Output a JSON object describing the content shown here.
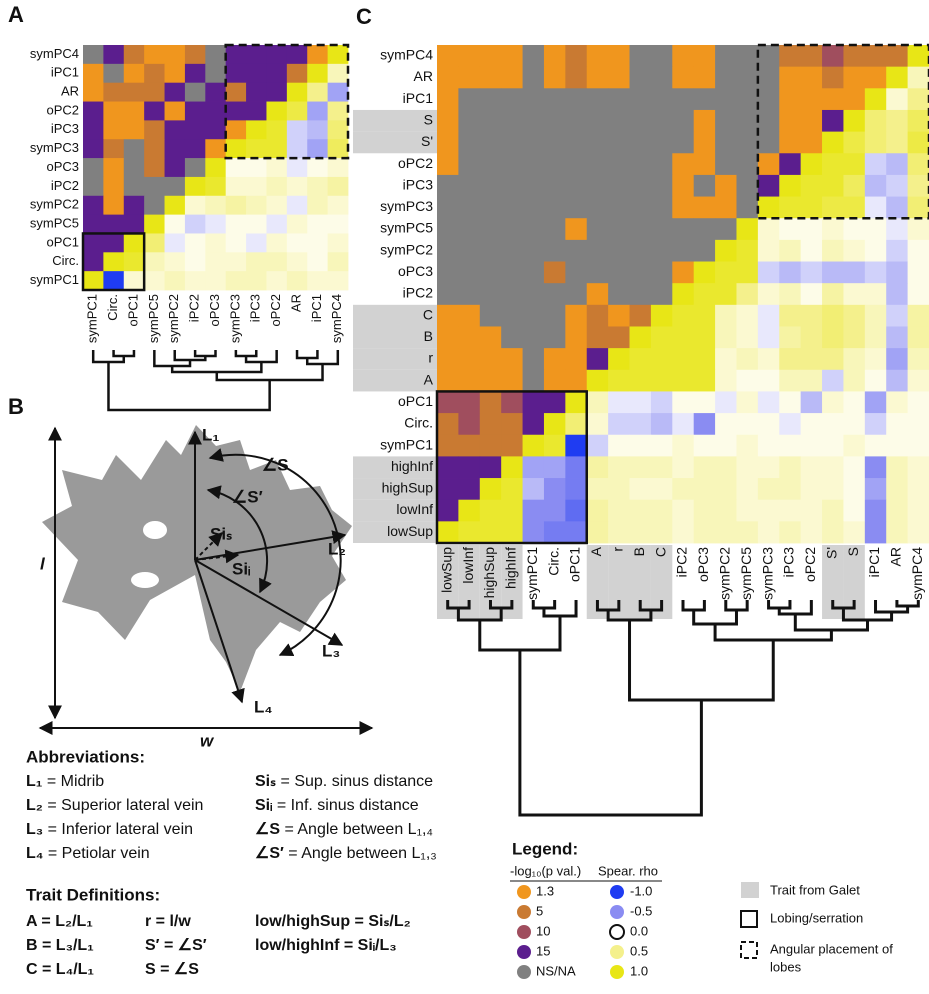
{
  "chart_data": [
    {
      "type": "heatmap",
      "panel": "A",
      "rows": [
        "symPC4",
        "iPC1",
        "AR",
        "oPC2",
        "iPC3",
        "symPC3",
        "oPC3",
        "iPC2",
        "symPC2",
        "symPC5",
        "oPC1",
        "Circ.",
        "symPC1"
      ],
      "columns": [
        "symPC1",
        "Circ.",
        "oPC1",
        "symPC5",
        "symPC2",
        "iPC2",
        "oPC3",
        "symPC3",
        "iPC3",
        "oPC2",
        "AR",
        "iPC1",
        "symPC4"
      ],
      "values": [
        [
          null,
          15,
          5,
          1.3,
          1.3,
          5,
          null,
          15,
          15,
          15,
          15,
          1.3,
          1
        ],
        [
          1.3,
          null,
          1.3,
          5,
          1.3,
          15,
          null,
          15,
          15,
          15,
          5,
          1,
          0.3
        ],
        [
          1.3,
          5,
          5,
          5,
          15,
          null,
          15,
          5,
          15,
          15,
          1,
          0.5,
          -0.4
        ],
        [
          15,
          1.3,
          1.3,
          15,
          1.3,
          15,
          15,
          15,
          15,
          1,
          0.8,
          -0.4,
          0.5
        ],
        [
          15,
          1.3,
          1.3,
          5,
          15,
          15,
          15,
          1.3,
          1,
          0.9,
          -0.2,
          -0.3,
          0.6
        ],
        [
          15,
          5,
          null,
          5,
          15,
          15,
          1.3,
          1,
          0.9,
          0.9,
          -0.2,
          -0.4,
          0.7
        ],
        [
          null,
          1.3,
          null,
          5,
          15,
          null,
          1,
          0.1,
          0.1,
          0.2,
          -0.1,
          0.1,
          0.2
        ],
        [
          null,
          1.3,
          null,
          null,
          null,
          1,
          0.9,
          0.2,
          0.2,
          0.3,
          0.2,
          0.3,
          0.4
        ],
        [
          15,
          1.3,
          15,
          null,
          1,
          0.2,
          0.3,
          0.4,
          0.3,
          0.2,
          -0.1,
          0.3,
          0.2
        ],
        [
          15,
          15,
          15,
          1,
          0.1,
          -0.2,
          -0.1,
          0.1,
          0.1,
          -0.1,
          0.2,
          0.1,
          0.1
        ],
        [
          15,
          15,
          1,
          0.6,
          -0.1,
          0.1,
          0.2,
          0.1,
          -0.1,
          0.2,
          0.1,
          0.1,
          0.2
        ],
        [
          15,
          1,
          0.9,
          0.3,
          0.2,
          0.1,
          0.2,
          0.2,
          0.3,
          0.3,
          0.2,
          0.1,
          0.3
        ],
        [
          1,
          -1.0,
          0.2,
          0.2,
          0.3,
          0.2,
          0.2,
          0.3,
          0.3,
          0.2,
          0.3,
          0.2,
          0.2
        ]
      ]
    },
    {
      "type": "heatmap",
      "panel": "C",
      "rows": [
        "symPC4",
        "AR",
        "iPC1",
        "S",
        "S'",
        "oPC2",
        "iPC3",
        "symPC3",
        "symPC5",
        "symPC2",
        "oPC3",
        "iPC2",
        "C",
        "B",
        "r",
        "A",
        "oPC1",
        "Circ.",
        "symPC1",
        "highInf",
        "highSup",
        "lowInf",
        "lowSup"
      ],
      "columns": [
        "lowSup",
        "lowInf",
        "highSup",
        "highInf",
        "symPC1",
        "Circ.",
        "oPC1",
        "A",
        "r",
        "B",
        "C",
        "iPC2",
        "oPC3",
        "symPC2",
        "symPC5",
        "symPC3",
        "iPC3",
        "oPC2",
        "S'",
        "S",
        "iPC1",
        "AR",
        "symPC4"
      ],
      "galet_rows": [
        false,
        false,
        false,
        true,
        true,
        false,
        false,
        false,
        false,
        false,
        false,
        false,
        true,
        true,
        true,
        true,
        false,
        false,
        false,
        true,
        true,
        true,
        true
      ],
      "galet_columns": [
        true,
        true,
        true,
        true,
        false,
        false,
        false,
        true,
        true,
        true,
        true,
        false,
        false,
        false,
        false,
        false,
        false,
        false,
        true,
        true,
        false,
        false,
        false
      ],
      "values": [
        [
          1.3,
          1.3,
          1.3,
          1.3,
          null,
          1.3,
          5,
          1.3,
          1.3,
          null,
          null,
          1.3,
          1.3,
          null,
          null,
          null,
          5,
          5,
          10,
          5,
          5,
          5,
          1
        ],
        [
          1.3,
          1.3,
          1.3,
          1.3,
          null,
          1.3,
          5,
          1.3,
          1.3,
          null,
          null,
          1.3,
          1.3,
          null,
          null,
          null,
          1.3,
          1.3,
          5,
          1.3,
          1.3,
          1,
          0.3
        ],
        [
          1.3,
          null,
          null,
          null,
          null,
          null,
          null,
          null,
          null,
          null,
          null,
          null,
          null,
          null,
          null,
          null,
          1.3,
          1.3,
          1.3,
          1.3,
          1,
          0.2,
          0.5
        ],
        [
          1.3,
          null,
          null,
          null,
          null,
          null,
          null,
          null,
          null,
          null,
          null,
          null,
          1.3,
          null,
          null,
          null,
          1.3,
          1.3,
          15,
          1,
          0.6,
          0.5,
          0.7
        ],
        [
          1.3,
          null,
          null,
          null,
          null,
          null,
          null,
          null,
          null,
          null,
          null,
          null,
          1.3,
          null,
          null,
          null,
          1.3,
          1.3,
          1,
          0.8,
          0.6,
          0.5,
          0.8
        ],
        [
          1.3,
          null,
          null,
          null,
          null,
          null,
          null,
          null,
          null,
          null,
          null,
          1.3,
          1.3,
          null,
          null,
          1.3,
          15,
          1,
          0.9,
          0.9,
          -0.2,
          -0.3,
          0.6
        ],
        [
          null,
          null,
          null,
          null,
          null,
          null,
          null,
          null,
          null,
          null,
          null,
          1.3,
          null,
          1.3,
          null,
          15,
          1,
          0.9,
          0.9,
          0.7,
          -0.3,
          -0.2,
          0.5
        ],
        [
          null,
          null,
          null,
          null,
          null,
          null,
          null,
          null,
          null,
          null,
          null,
          1.3,
          1.3,
          1.3,
          null,
          1,
          0.9,
          0.9,
          0.8,
          0.8,
          -0.1,
          -0.3,
          0.6
        ],
        [
          null,
          null,
          null,
          null,
          null,
          null,
          1.3,
          null,
          null,
          null,
          null,
          null,
          null,
          null,
          1,
          0.2,
          0.1,
          0.1,
          0.2,
          0.1,
          0.1,
          -0.1,
          0.2
        ],
        [
          null,
          null,
          null,
          null,
          null,
          null,
          null,
          null,
          null,
          null,
          null,
          null,
          null,
          1,
          0.9,
          0.2,
          0.3,
          0.1,
          0.3,
          0.2,
          0.1,
          -0.2,
          0.1
        ],
        [
          null,
          null,
          null,
          null,
          null,
          5,
          null,
          null,
          null,
          null,
          null,
          1.3,
          1,
          0.9,
          0.9,
          -0.2,
          -0.3,
          -0.2,
          -0.3,
          -0.3,
          -0.2,
          -0.3,
          0.1
        ],
        [
          null,
          null,
          null,
          null,
          null,
          null,
          null,
          1.3,
          null,
          null,
          null,
          1,
          0.9,
          0.9,
          0.5,
          0.2,
          0.3,
          0.1,
          0.4,
          0.2,
          0.2,
          -0.3,
          0.1
        ],
        [
          1.3,
          1.3,
          null,
          null,
          null,
          null,
          1.3,
          5,
          1.3,
          5,
          1,
          0.9,
          0.9,
          0.3,
          0.2,
          -0.1,
          0.5,
          0.5,
          0.6,
          0.5,
          0.3,
          -0.2,
          0.4
        ],
        [
          1.3,
          1.3,
          1.3,
          null,
          null,
          null,
          1.3,
          5,
          5,
          1,
          0.9,
          0.9,
          0.9,
          0.3,
          0.2,
          -0.1,
          0.4,
          0.5,
          0.6,
          0.5,
          0.3,
          -0.3,
          0.4
        ],
        [
          1.3,
          1.3,
          1.3,
          1.3,
          null,
          1.3,
          1.3,
          15,
          1,
          0.9,
          0.9,
          0.9,
          0.9,
          0.2,
          0.3,
          0.2,
          0.5,
          0.5,
          0.5,
          0.3,
          0.2,
          -0.4,
          0.3
        ],
        [
          1.3,
          1.3,
          1.3,
          1.3,
          null,
          1.3,
          1.3,
          1,
          0.9,
          0.9,
          0.9,
          0.9,
          0.9,
          0.2,
          0.1,
          0.1,
          0.3,
          0.3,
          -0.2,
          0.3,
          0.1,
          -0.3,
          0.2
        ],
        [
          10,
          10,
          5,
          10,
          15,
          15,
          1,
          0.3,
          -0.1,
          -0.1,
          -0.2,
          0.1,
          0.1,
          -0.1,
          0.2,
          -0.1,
          0.1,
          -0.3,
          0.2,
          0.1,
          -0.4,
          0.2,
          0.1
        ],
        [
          5,
          10,
          5,
          5,
          15,
          1,
          0.6,
          0.2,
          -0.2,
          -0.2,
          -0.3,
          -0.1,
          -0.5,
          0.1,
          0.1,
          0.1,
          -0.1,
          0.1,
          0.1,
          0.1,
          -0.2,
          0.1,
          0.1
        ],
        [
          5,
          5,
          5,
          5,
          1,
          0.9,
          -1.0,
          -0.2,
          0.1,
          0.1,
          0.1,
          0.2,
          0.1,
          0.1,
          0.2,
          0.1,
          0.1,
          0.1,
          0.1,
          0.2,
          0.1,
          0.1,
          0.1
        ],
        [
          15,
          15,
          15,
          1,
          -0.4,
          -0.4,
          -0.6,
          0.4,
          0.3,
          0.3,
          0.3,
          0.2,
          0.3,
          0.3,
          0.2,
          0.2,
          0.3,
          0.2,
          0.2,
          0.1,
          -0.5,
          0.3,
          0.2
        ],
        [
          15,
          15,
          1,
          0.9,
          -0.3,
          -0.5,
          -0.6,
          0.3,
          0.3,
          0.2,
          0.2,
          0.3,
          0.3,
          0.3,
          0.2,
          0.3,
          0.3,
          0.2,
          0.2,
          0.1,
          -0.4,
          0.3,
          0.2
        ],
        [
          15,
          1,
          0.9,
          0.9,
          -0.5,
          -0.5,
          -0.7,
          0.4,
          0.3,
          0.3,
          0.3,
          0.2,
          0.3,
          0.3,
          0.2,
          0.2,
          0.2,
          0.2,
          0.3,
          0.1,
          -0.5,
          0.3,
          0.2
        ],
        [
          1,
          0.9,
          0.9,
          0.9,
          -0.5,
          -0.6,
          -0.6,
          0.4,
          0.3,
          0.3,
          0.3,
          0.2,
          0.3,
          0.3,
          0.3,
          0.2,
          0.3,
          0.2,
          0.3,
          0.2,
          -0.5,
          0.3,
          0.2
        ]
      ]
    }
  ],
  "diagram": {
    "panel": "B",
    "L1": "L₁",
    "L2": "L₂",
    "L3": "L₃",
    "L4": "L₄",
    "length": "l",
    "width": "w",
    "angle_S": "∠S",
    "angle_S_prime": "∠S′",
    "Si_s": "Siₛ",
    "Si_i": "Siᵢ"
  },
  "abbreviations": {
    "title": "Abbreviations:",
    "left": [
      {
        "symbol": "L₁",
        "text": " = Midrib"
      },
      {
        "symbol": "L₂",
        "text": " = Superior lateral vein"
      },
      {
        "symbol": "L₃",
        "text": " = Inferior lateral vein"
      },
      {
        "symbol": "L₄",
        "text": " = Petiolar vein"
      }
    ],
    "right": [
      {
        "symbol": "Siₛ",
        "text": " = Sup. sinus distance"
      },
      {
        "symbol": "Siᵢ",
        "text": " = Inf. sinus distance"
      },
      {
        "symbol": "∠S",
        "text": " = Angle between L₁,₄"
      },
      {
        "symbol": "∠S′",
        "text": " = Angle between L₁,₃"
      }
    ]
  },
  "trait_definitions": {
    "title": "Trait Definitions:",
    "columns": [
      [
        "A = L₂/L₁",
        "B = L₃/L₁",
        "C = L₄/L₁"
      ],
      [
        "r = l/w",
        "S′ = ∠S′",
        "S = ∠S"
      ],
      [
        "low/highSup = Siₛ/L₂",
        "low/highInf  = Siᵢ/L₃"
      ]
    ]
  },
  "legend": {
    "title": "Legend:",
    "p_title": "-log₁₀(p val.)",
    "p_values": [
      1.3,
      5,
      10,
      15
    ],
    "p_colors": [
      "#f0961e",
      "#c97a32",
      "#a04e5e",
      "#5b1e8e"
    ],
    "na_label": "NS/NA",
    "na_color": "#808080",
    "rho_title": "Spear. rho",
    "rho_ticks": [
      {
        "value": -1.0,
        "label": "-1.0"
      },
      {
        "value": -0.5,
        "label": "-0.5"
      },
      {
        "value": 0.0,
        "label": "0.0"
      },
      {
        "value": 0.5,
        "label": "0.5"
      },
      {
        "value": 1.0,
        "label": "1.0"
      }
    ],
    "rho_colors": [
      "#1f3cf2",
      "#8a8cf2",
      "#ffffff",
      "#f4f08c",
      "#e8e616"
    ],
    "galet": "Trait from Galet",
    "galet_color": "#d2d2d2",
    "lobing": "Lobing/serration",
    "angular": [
      "Angular placement of",
      "lobes"
    ]
  }
}
